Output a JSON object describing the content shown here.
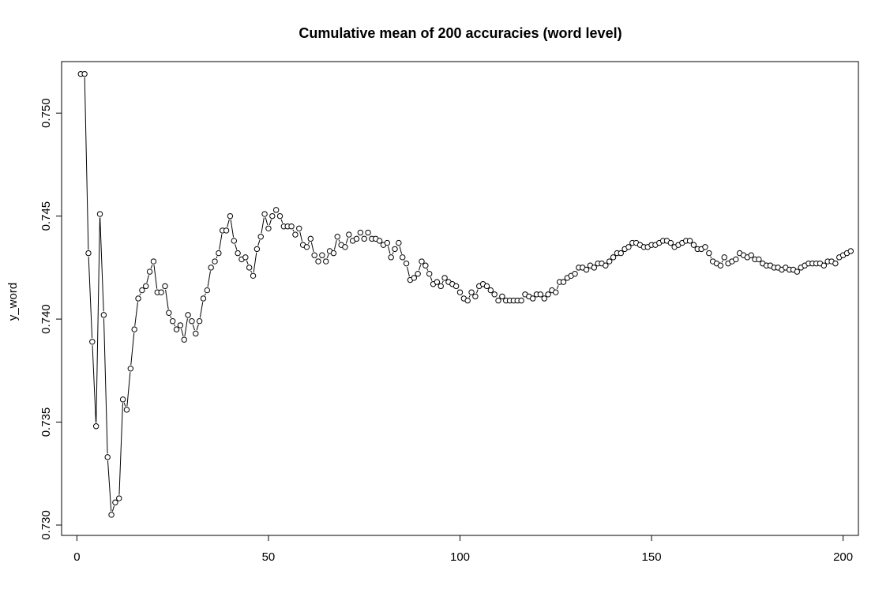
{
  "chart_data": {
    "type": "line",
    "title": "Cumulative mean of 200 accuracies (word level)",
    "xlabel": "",
    "ylabel": "y_word",
    "xlim": [
      -4,
      204
    ],
    "ylim": [
      0.7295,
      0.7525
    ],
    "x_ticks": [
      0,
      50,
      100,
      150,
      200
    ],
    "y_ticks": [
      0.73,
      0.735,
      0.74,
      0.745,
      0.75
    ],
    "y_tick_labels": [
      "0.730",
      "0.735",
      "0.740",
      "0.745",
      "0.750"
    ],
    "grid": false,
    "legend": "none",
    "markers": "open-circles-connected",
    "series": [
      {
        "values": [
          0.7519,
          0.7519,
          0.7432,
          0.7389,
          0.7348,
          0.7451,
          0.7402,
          0.7333,
          0.7305,
          0.7311,
          0.7313,
          0.7361,
          0.7356,
          0.7376,
          0.7395,
          0.741,
          0.7414,
          0.7416,
          0.7423,
          0.7428,
          0.7413,
          0.7413,
          0.7416,
          0.7403,
          0.7399,
          0.7395,
          0.7397,
          0.739,
          0.7402,
          0.7399,
          0.7393,
          0.7399,
          0.741,
          0.7414,
          0.7425,
          0.7428,
          0.7432,
          0.7443,
          0.7443,
          0.745,
          0.7438,
          0.7432,
          0.7429,
          0.743,
          0.7425,
          0.7421,
          0.7434,
          0.744,
          0.7451,
          0.7444,
          0.745,
          0.7453,
          0.745,
          0.7445,
          0.7445,
          0.7445,
          0.7441,
          0.7444,
          0.7436,
          0.7435,
          0.7439,
          0.7431,
          0.7428,
          0.7431,
          0.7428,
          0.7433,
          0.7432,
          0.744,
          0.7436,
          0.7435,
          0.7441,
          0.7438,
          0.7439,
          0.7442,
          0.7439,
          0.7442,
          0.7439,
          0.7439,
          0.7438,
          0.7436,
          0.7437,
          0.743,
          0.7434,
          0.7437,
          0.743,
          0.7427,
          0.7419,
          0.742,
          0.7422,
          0.7428,
          0.7426,
          0.7422,
          0.7417,
          0.7418,
          0.7416,
          0.742,
          0.7418,
          0.7417,
          0.7416,
          0.7413,
          0.741,
          0.7409,
          0.7413,
          0.7411,
          0.7416,
          0.7417,
          0.7416,
          0.7414,
          0.7412,
          0.7409,
          0.7411,
          0.7409,
          0.7409,
          0.7409,
          0.7409,
          0.7409,
          0.7412,
          0.7411,
          0.741,
          0.7412,
          0.7412,
          0.741,
          0.7412,
          0.7414,
          0.7413,
          0.7418,
          0.7418,
          0.742,
          0.7421,
          0.7422,
          0.7425,
          0.7425,
          0.7424,
          0.7426,
          0.7425,
          0.7427,
          0.7427,
          0.7426,
          0.7428,
          0.743,
          0.7432,
          0.7432,
          0.7434,
          0.7435,
          0.7437,
          0.7437,
          0.7436,
          0.7435,
          0.7435,
          0.7436,
          0.7436,
          0.7437,
          0.7438,
          0.7438,
          0.7437,
          0.7435,
          0.7436,
          0.7437,
          0.7438,
          0.7438,
          0.7436,
          0.7434,
          0.7434,
          0.7435,
          0.7432,
          0.7428,
          0.7427,
          0.7426,
          0.743,
          0.7427,
          0.7428,
          0.7429,
          0.7432,
          0.7431,
          0.743,
          0.7431,
          0.7429,
          0.7429,
          0.7427,
          0.7426,
          0.7426,
          0.7425,
          0.7425,
          0.7424,
          0.7425,
          0.7424,
          0.7424,
          0.7423,
          0.7425,
          0.7426,
          0.7427,
          0.7427,
          0.7427,
          0.7427,
          0.7426,
          0.7428,
          0.7428,
          0.7427,
          0.743,
          0.7431,
          0.7432,
          0.7433
        ]
      }
    ]
  }
}
